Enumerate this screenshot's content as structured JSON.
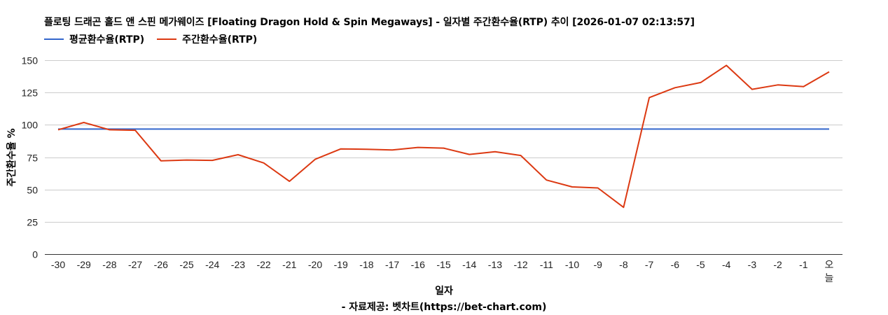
{
  "title": "플로팅 드래곤 홀드 앤 스핀 메가웨이즈 [Floating Dragon Hold & Spin Megaways] - 일자별 주간환수율(RTP) 추이 [2026-01-07 02:13:57]",
  "legend": [
    {
      "label": "평균환수율(RTP)",
      "color": "#3366cc"
    },
    {
      "label": "주간환수율(RTP)",
      "color": "#dc3912"
    }
  ],
  "axis": {
    "ylabel": "주간환수율 %",
    "xlabel": "일자"
  },
  "source": "- 자료제공: 벳차트(https://bet-chart.com)",
  "chart_data": {
    "type": "line",
    "title": "플로팅 드래곤 홀드 앤 스핀 메가웨이즈 [Floating Dragon Hold & Spin Megaways] - 일자별 주간환수율(RTP) 추이 [2026-01-07 02:13:57]",
    "xlabel": "일자",
    "ylabel": "주간환수율 %",
    "ylim": [
      0,
      150
    ],
    "yticks": [
      0,
      25,
      50,
      75,
      100,
      125,
      150
    ],
    "grid": true,
    "legend_position": "top",
    "categories": [
      "-30",
      "-29",
      "-28",
      "-27",
      "-26",
      "-25",
      "-24",
      "-23",
      "-22",
      "-21",
      "-20",
      "-19",
      "-18",
      "-17",
      "-16",
      "-15",
      "-14",
      "-13",
      "-12",
      "-11",
      "-10",
      "-9",
      "-8",
      "-7",
      "-6",
      "-5",
      "-4",
      "-3",
      "-2",
      "-1",
      "오늘"
    ],
    "series": [
      {
        "name": "평균환수율(RTP)",
        "color": "#3366cc",
        "values": [
          96.7,
          96.7,
          96.7,
          96.7,
          96.7,
          96.7,
          96.7,
          96.7,
          96.7,
          96.7,
          96.7,
          96.7,
          96.7,
          96.7,
          96.7,
          96.7,
          96.7,
          96.7,
          96.7,
          96.7,
          96.7,
          96.7,
          96.7,
          96.7,
          96.7,
          96.7,
          96.7,
          96.7,
          96.7,
          96.7,
          96.7
        ]
      },
      {
        "name": "주간환수율(RTP)",
        "color": "#dc3912",
        "values": [
          96.2,
          101.8,
          96.2,
          95.8,
          72.2,
          72.8,
          72.5,
          76.9,
          70.5,
          56.3,
          73.3,
          81.4,
          81.1,
          80.6,
          82.5,
          82.0,
          77.1,
          79.2,
          76.3,
          57.3,
          52.0,
          51.2,
          36.2,
          121.1,
          128.7,
          132.7,
          146.0,
          127.5,
          130.9,
          129.6,
          141.0
        ]
      }
    ]
  }
}
